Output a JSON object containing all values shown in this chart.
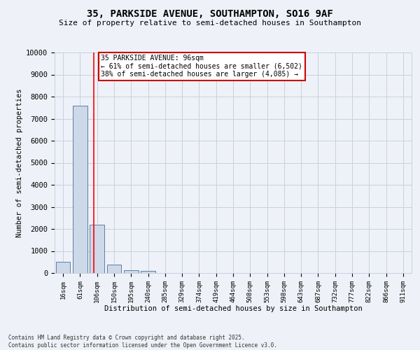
{
  "title_line1": "35, PARKSIDE AVENUE, SOUTHAMPTON, SO16 9AF",
  "title_line2": "Size of property relative to semi-detached houses in Southampton",
  "xlabel": "Distribution of semi-detached houses by size in Southampton",
  "ylabel": "Number of semi-detached properties",
  "bar_labels": [
    "16sqm",
    "61sqm",
    "106sqm",
    "150sqm",
    "195sqm",
    "240sqm",
    "285sqm",
    "329sqm",
    "374sqm",
    "419sqm",
    "464sqm",
    "508sqm",
    "553sqm",
    "598sqm",
    "643sqm",
    "687sqm",
    "732sqm",
    "777sqm",
    "822sqm",
    "866sqm",
    "911sqm"
  ],
  "bar_values": [
    500,
    7600,
    2200,
    380,
    130,
    110,
    0,
    0,
    0,
    0,
    0,
    0,
    0,
    0,
    0,
    0,
    0,
    0,
    0,
    0,
    0
  ],
  "bar_color": "#cdd8e8",
  "bar_edge_color": "#5c7fa8",
  "red_line_x": 1.82,
  "ylim": [
    0,
    10000
  ],
  "yticks": [
    0,
    1000,
    2000,
    3000,
    4000,
    5000,
    6000,
    7000,
    8000,
    9000,
    10000
  ],
  "annotation_title": "35 PARKSIDE AVENUE: 96sqm",
  "annotation_line1": "← 61% of semi-detached houses are smaller (6,502)",
  "annotation_line2": "38% of semi-detached houses are larger (4,085) →",
  "footer_line1": "Contains HM Land Registry data © Crown copyright and database right 2025.",
  "footer_line2": "Contains public sector information licensed under the Open Government Licence v3.0.",
  "background_color": "#eef2f8",
  "grid_color": "#c8d0e0",
  "annotation_box_color": "#ffffff",
  "annotation_box_edge": "#cc0000"
}
